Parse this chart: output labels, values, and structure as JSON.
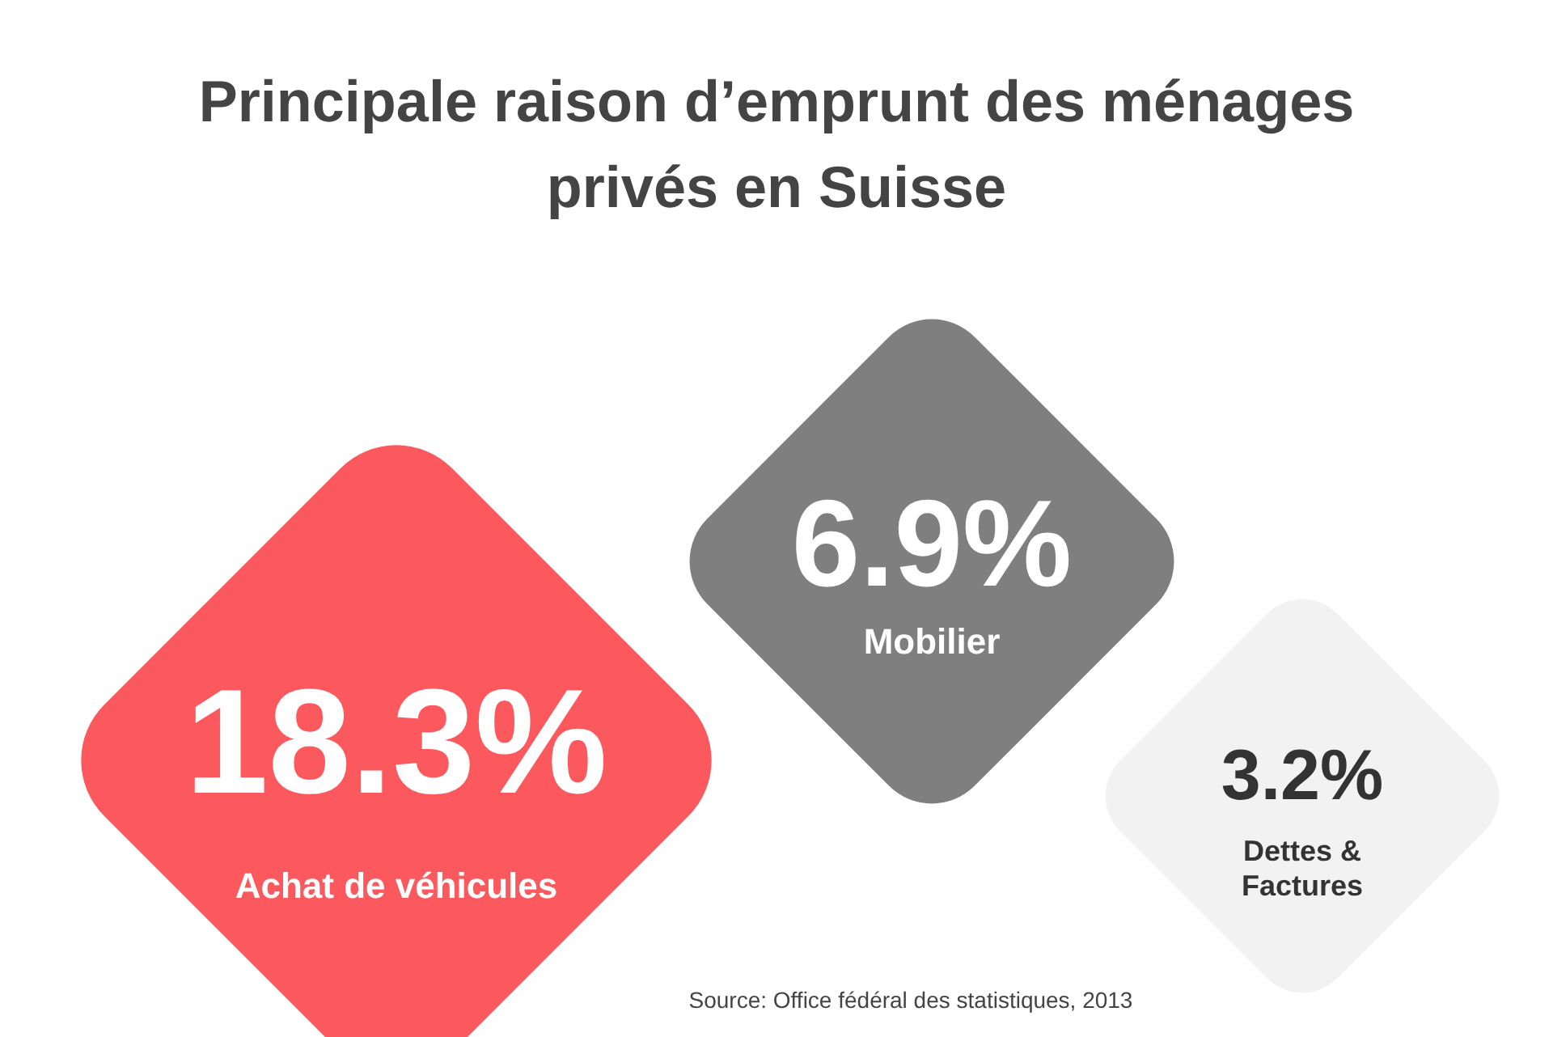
{
  "chart_data": {
    "type": "other",
    "title": "Principale raison d’emprunt des ménages privés en Suisse",
    "categories": [
      "Achat de véhicules",
      "Mobilier",
      "Dettes & Factures"
    ],
    "values": [
      18.3,
      6.9,
      3.2
    ],
    "value_labels": [
      "18.3%",
      "6.9%",
      "3.2%"
    ],
    "colors": [
      "#fc595e",
      "#7f7f7f",
      "#f2f2f2"
    ],
    "annotations": [
      "Source: Office fédéral des statistiques, 2013"
    ]
  }
}
